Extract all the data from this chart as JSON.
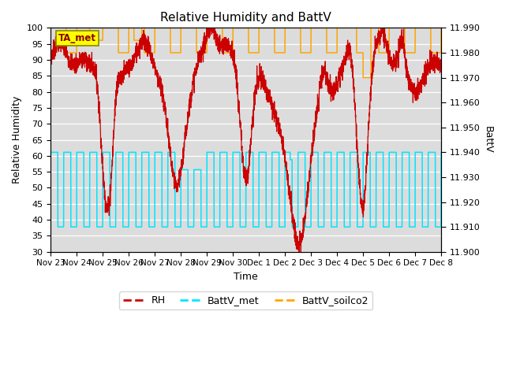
{
  "title": "Relative Humidity and BattV",
  "ylabel_left": "Relative Humidity",
  "ylabel_right": "BattV",
  "xlabel": "Time",
  "ylim_left": [
    30,
    100
  ],
  "ylim_right": [
    11.9,
    11.99
  ],
  "bg_color": "#dcdcdc",
  "annotation_label": "TA_met",
  "rh_color": "#cc0000",
  "battv_met_color": "#00e5ff",
  "battv_soilco2_color": "#ffa500",
  "x_tick_labels": [
    "Nov 23",
    "Nov 24",
    "Nov 25",
    "Nov 26",
    "Nov 27",
    "Nov 28",
    "Nov 29",
    "Nov 30",
    "Dec 1",
    "Dec 2",
    "Dec 3",
    "Dec 4",
    "Dec 5",
    "Dec 6",
    "Dec 7",
    "Dec 8"
  ],
  "n_days": 15,
  "yticks_left": [
    30,
    35,
    40,
    45,
    50,
    55,
    60,
    65,
    70,
    75,
    80,
    85,
    90,
    95,
    100
  ],
  "yticks_right": [
    11.9,
    11.91,
    11.92,
    11.93,
    11.94,
    11.95,
    11.96,
    11.97,
    11.98,
    11.99
  ]
}
